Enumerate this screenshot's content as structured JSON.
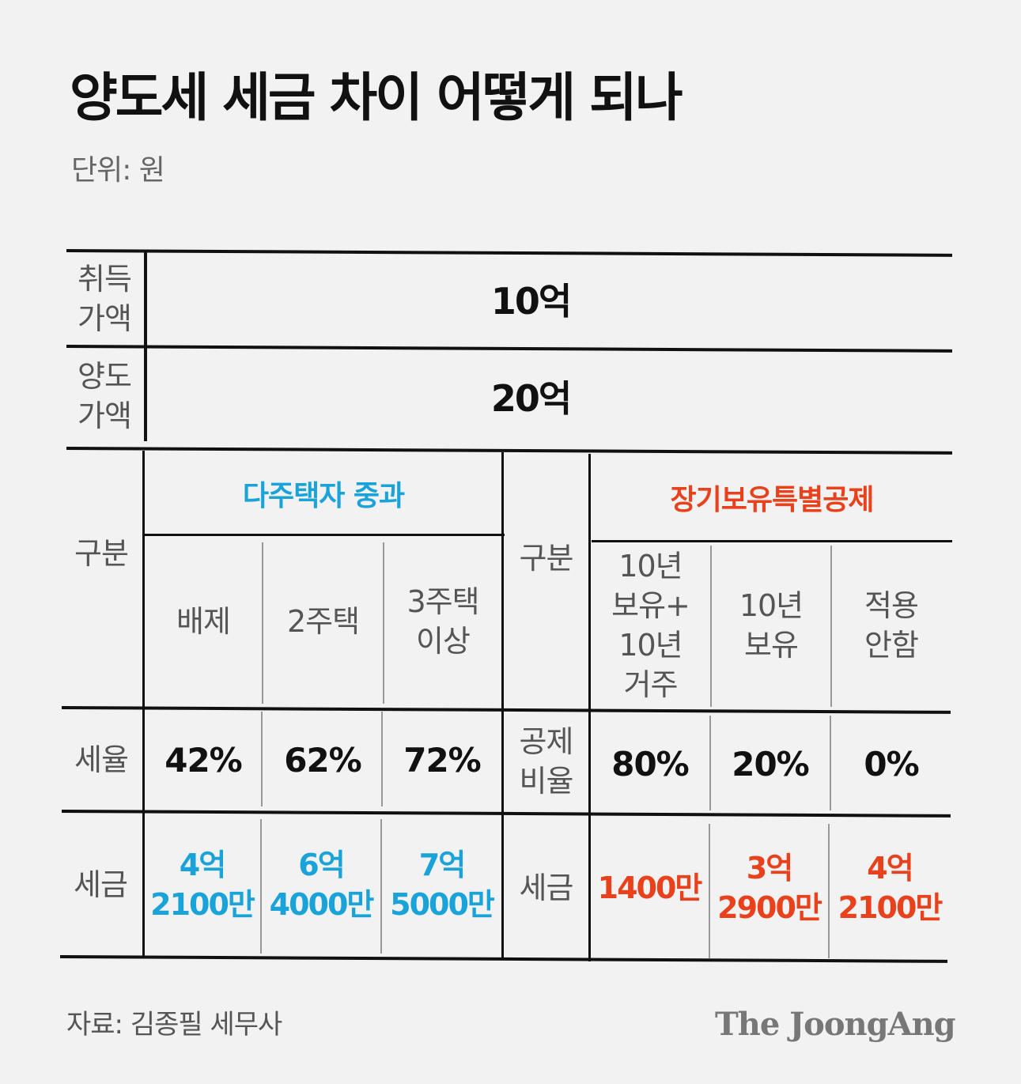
{
  "title": "양도세 세금 차이 어떻게 되나",
  "unit": "단위: 원",
  "acquisition": {
    "label": "취득\n가액",
    "value": "10억"
  },
  "transfer": {
    "label": "양도\n가액",
    "value": "20억"
  },
  "left": {
    "header": "다주택자 중과",
    "category_label": "구분",
    "columns": [
      "배제",
      "2주택",
      "3주택\n이상"
    ],
    "rate_label": "세율",
    "rates": [
      "42%",
      "62%",
      "72%"
    ],
    "tax_label": "세금",
    "taxes": [
      "4억\n2100만",
      "6억\n4000만",
      "7억\n5000만"
    ]
  },
  "right": {
    "header": "장기보유특별공제",
    "category_label": "구분",
    "columns": [
      "10년\n보유+\n10년\n거주",
      "10년\n보유",
      "적용\n안함"
    ],
    "rate_label": "공제\n비율",
    "rates": [
      "80%",
      "20%",
      "0%"
    ],
    "tax_label": "세금",
    "taxes": [
      "1400만",
      "3억\n2900만",
      "4억\n2100만"
    ]
  },
  "source": "자료: 김종필 세무사",
  "brand": "The JoongAng",
  "colors": {
    "blue": "#1aa3d9",
    "red": "#e8411c"
  }
}
